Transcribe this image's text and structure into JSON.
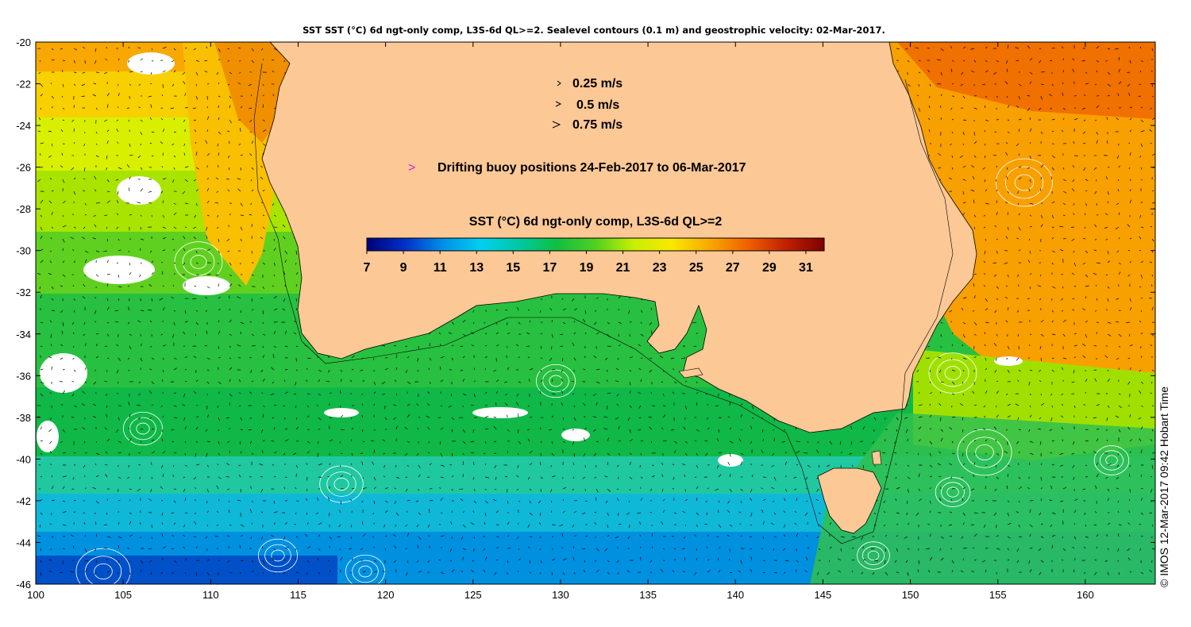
{
  "title": "SST SST (°C) 6d ngt-only comp, L3S-6d QL>=2. Sealevel contours (0.1 m) and geostrophic velocity: 02-Mar-2017.",
  "axes": {
    "x_ticks": [
      "100",
      "105",
      "110",
      "115",
      "120",
      "125",
      "130",
      "135",
      "140",
      "145",
      "150",
      "155",
      "160"
    ],
    "y_ticks": [
      "-20",
      "-22",
      "-24",
      "-26",
      "-28",
      "-30",
      "-32",
      "-34",
      "-36",
      "-38",
      "-40",
      "-42",
      "-44",
      "-46"
    ],
    "xlim": [
      100,
      164
    ],
    "ylim": [
      -46,
      -20
    ]
  },
  "velocity_legend": [
    {
      "label": "0.25 m/s",
      "speed": 0.25
    },
    {
      "label": "0.5 m/s",
      "speed": 0.5
    },
    {
      "label": "0.75 m/s",
      "speed": 0.75
    }
  ],
  "buoy_legend": {
    "symbol": ">",
    "label": "Drifting buoy positions 24-Feb-2017 to 06-Mar-2017",
    "color": "#e020e0"
  },
  "colorbar": {
    "title": "SST (°C) 6d ngt-only comp, L3S-6d QL>=2",
    "ticks": [
      "7",
      "9",
      "11",
      "13",
      "15",
      "17",
      "19",
      "21",
      "23",
      "25",
      "27",
      "29",
      "31"
    ],
    "range": [
      7,
      32
    ],
    "colors": [
      "#00007a",
      "#0030c8",
      "#0090e8",
      "#00d0f0",
      "#00c8a0",
      "#10c040",
      "#50d020",
      "#c8f000",
      "#f8e800",
      "#f8a800",
      "#f06000",
      "#c02000",
      "#800000"
    ]
  },
  "stamp": "© IMOS 12-Mar-2017 09:42 Hobart Time",
  "colors": {
    "land": "#fcc896",
    "frame": "#000000",
    "contour": "#ffffff",
    "arrow": "#000000"
  }
}
